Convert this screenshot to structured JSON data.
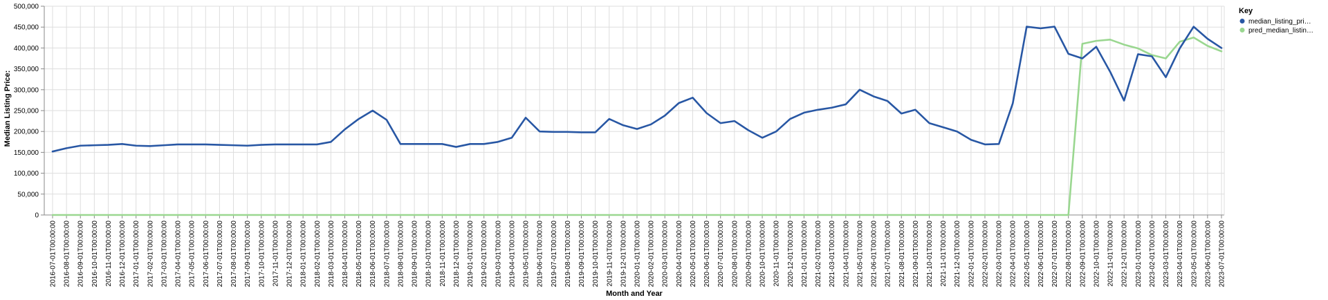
{
  "chart_data": {
    "type": "line",
    "title": "",
    "xlabel": "Month and Year",
    "ylabel": "Median Listing Price:",
    "ylim": [
      0,
      500000
    ],
    "y_ticks": [
      "0",
      "50,000",
      "100,000",
      "150,000",
      "200,000",
      "250,000",
      "300,000",
      "350,000",
      "400,000",
      "450,000",
      "500,000"
    ],
    "grid": true,
    "legend": {
      "title": "Key",
      "placement": "right"
    },
    "x": [
      "2016-07-01T00:00:00",
      "2016-08-01T00:00:00",
      "2016-09-01T00:00:00",
      "2016-10-01T00:00:00",
      "2016-11-01T00:00:00",
      "2016-12-01T00:00:00",
      "2017-01-01T00:00:00",
      "2017-02-01T00:00:00",
      "2017-03-01T00:00:00",
      "2017-04-01T00:00:00",
      "2017-05-01T00:00:00",
      "2017-06-01T00:00:00",
      "2017-07-01T00:00:00",
      "2017-08-01T00:00:00",
      "2017-09-01T00:00:00",
      "2017-10-01T00:00:00",
      "2017-11-01T00:00:00",
      "2017-12-01T00:00:00",
      "2018-01-01T00:00:00",
      "2018-02-01T00:00:00",
      "2018-03-01T00:00:00",
      "2018-04-01T00:00:00",
      "2018-05-01T00:00:00",
      "2018-06-01T00:00:00",
      "2018-07-01T00:00:00",
      "2018-08-01T00:00:00",
      "2018-09-01T00:00:00",
      "2018-10-01T00:00:00",
      "2018-11-01T00:00:00",
      "2018-12-01T00:00:00",
      "2019-01-01T00:00:00",
      "2019-02-01T00:00:00",
      "2019-03-01T00:00:00",
      "2019-04-01T00:00:00",
      "2019-05-01T00:00:00",
      "2019-06-01T00:00:00",
      "2019-07-01T00:00:00",
      "2019-08-01T00:00:00",
      "2019-09-01T00:00:00",
      "2019-10-01T00:00:00",
      "2019-11-01T00:00:00",
      "2019-12-01T00:00:00",
      "2020-01-01T00:00:00",
      "2020-02-01T00:00:00",
      "2020-03-01T00:00:00",
      "2020-04-01T00:00:00",
      "2020-05-01T00:00:00",
      "2020-06-01T00:00:00",
      "2020-07-01T00:00:00",
      "2020-08-01T00:00:00",
      "2020-09-01T00:00:00",
      "2020-10-01T00:00:00",
      "2020-11-01T00:00:00",
      "2020-12-01T00:00:00",
      "2021-01-01T00:00:00",
      "2021-02-01T00:00:00",
      "2021-03-01T00:00:00",
      "2021-04-01T00:00:00",
      "2021-05-01T00:00:00",
      "2021-06-01T00:00:00",
      "2021-07-01T00:00:00",
      "2021-08-01T00:00:00",
      "2021-09-01T00:00:00",
      "2021-10-01T00:00:00",
      "2021-11-01T00:00:00",
      "2021-12-01T00:00:00",
      "2022-01-01T00:00:00",
      "2022-02-01T00:00:00",
      "2022-03-01T00:00:00",
      "2022-04-01T00:00:00",
      "2022-05-01T00:00:00",
      "2022-06-01T00:00:00",
      "2022-07-01T00:00:00",
      "2022-08-01T00:00:00",
      "2022-09-01T00:00:00",
      "2022-10-01T00:00:00",
      "2022-11-01T00:00:00",
      "2022-12-01T00:00:00",
      "2023-01-01T00:00:00",
      "2023-02-01T00:00:00",
      "2023-03-01T00:00:00",
      "2023-04-01T00:00:00",
      "2023-05-01T00:00:00",
      "2023-06-01T00:00:00",
      "2023-07-01T00:00:00"
    ],
    "series": [
      {
        "name": "median_listing_pri…",
        "color": "#2857a4",
        "values": [
          152000,
          160000,
          166000,
          167000,
          168000,
          170000,
          166000,
          165000,
          167000,
          169000,
          169000,
          169000,
          168000,
          167000,
          166000,
          168000,
          169000,
          169000,
          169000,
          169000,
          175000,
          205000,
          230000,
          250000,
          228000,
          170000,
          170000,
          170000,
          170000,
          163000,
          170000,
          170000,
          175000,
          185000,
          233000,
          200000,
          199000,
          199000,
          198000,
          198000,
          230000,
          215000,
          206000,
          217000,
          238000,
          268000,
          281000,
          244000,
          220000,
          225000,
          203000,
          185000,
          200000,
          230000,
          245000,
          252000,
          257000,
          265000,
          300000,
          284000,
          273000,
          243000,
          252000,
          220000,
          210000,
          200000,
          180000,
          169000,
          170000,
          267000,
          451000,
          447000,
          451000,
          386000,
          375000,
          403000,
          343000,
          274000,
          385000,
          380000,
          330000,
          399000,
          451000,
          422000,
          400000
        ]
      },
      {
        "name": "pred_median_listin…",
        "color": "#9ad790",
        "values": [
          0,
          0,
          0,
          0,
          0,
          0,
          0,
          0,
          0,
          0,
          0,
          0,
          0,
          0,
          0,
          0,
          0,
          0,
          0,
          0,
          0,
          0,
          0,
          0,
          0,
          0,
          0,
          0,
          0,
          0,
          0,
          0,
          0,
          0,
          0,
          0,
          0,
          0,
          0,
          0,
          0,
          0,
          0,
          0,
          0,
          0,
          0,
          0,
          0,
          0,
          0,
          0,
          0,
          0,
          0,
          0,
          0,
          0,
          0,
          0,
          0,
          0,
          0,
          0,
          0,
          0,
          0,
          0,
          0,
          0,
          0,
          0,
          0,
          0,
          410000,
          417000,
          420000,
          408000,
          399000,
          383000,
          375000,
          415000,
          425000,
          405000,
          392000
        ]
      }
    ]
  }
}
